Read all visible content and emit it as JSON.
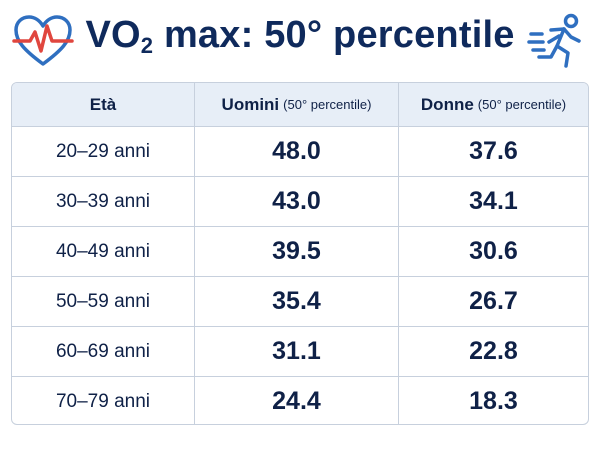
{
  "title": {
    "main": "VO",
    "sub": "2",
    "rest": " max: 50° percentile"
  },
  "icons": [
    "heart-rate-icon",
    "runner-icon"
  ],
  "colors": {
    "title": "#0f2a5c",
    "header_bg": "#e7eef7",
    "border": "#c7d0dd",
    "icon_blue": "#2f6fc0",
    "icon_red": "#e0463e"
  },
  "table": {
    "headers": {
      "age": "Età",
      "men": "Uomini",
      "men_note": "(50° percentile)",
      "women": "Donne",
      "women_note": "(50° percentile)"
    },
    "rows": [
      {
        "age": "20–29 anni",
        "men": "48.0",
        "women": "37.6"
      },
      {
        "age": "30–39 anni",
        "men": "43.0",
        "women": "34.1"
      },
      {
        "age": "40–49 anni",
        "men": "39.5",
        "women": "30.6"
      },
      {
        "age": "50–59 anni",
        "men": "35.4",
        "women": "26.7"
      },
      {
        "age": "60–69 anni",
        "men": "31.1",
        "women": "22.8"
      },
      {
        "age": "70–79 anni",
        "men": "24.4",
        "women": "18.3"
      }
    ]
  }
}
